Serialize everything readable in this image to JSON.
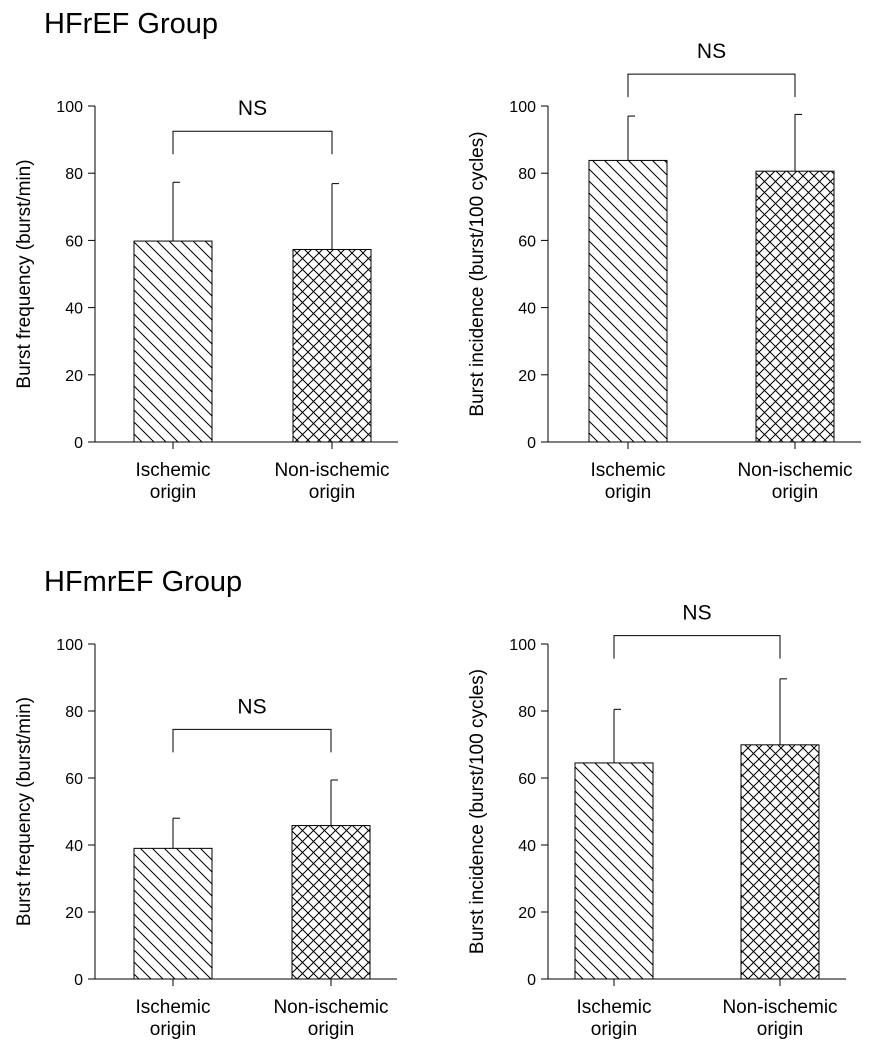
{
  "groups": [
    {
      "title": "HFrEF Group"
    },
    {
      "title": "HFmrEF Group"
    }
  ],
  "chart_data": [
    {
      "type": "bar",
      "group": "HFrEF Group",
      "categories": [
        [
          "Ischemic",
          "origin"
        ],
        [
          "Non-ischemic",
          "origin"
        ]
      ],
      "values": [
        59.8,
        57.3
      ],
      "error_upper": [
        77.3,
        76.9
      ],
      "patterns": [
        "diagonal-hatch",
        "cross-hatch"
      ],
      "ylabel": "Burst frequency (burst/min)",
      "ylim": [
        0,
        100
      ],
      "yticks": [
        0,
        20,
        40,
        60,
        80,
        100
      ],
      "annotation": {
        "text": "NS",
        "bracket_level": 92.5
      },
      "grid": false
    },
    {
      "type": "bar",
      "group": "HFrEF Group",
      "categories": [
        [
          "Ischemic",
          "origin"
        ],
        [
          "Non-ischemic",
          "origin"
        ]
      ],
      "values": [
        83.8,
        80.6
      ],
      "error_upper": [
        97.0,
        97.5
      ],
      "patterns": [
        "diagonal-hatch",
        "cross-hatch"
      ],
      "ylabel": "Burst incidence (burst/100 cycles)",
      "ylim": [
        0,
        100
      ],
      "yticks": [
        0,
        20,
        40,
        60,
        80,
        100
      ],
      "annotation": {
        "text": "NS",
        "bracket_level": 109.5
      },
      "grid": false
    },
    {
      "type": "bar",
      "group": "HFmrEF Group",
      "categories": [
        [
          "Ischemic",
          "origin"
        ],
        [
          "Non-ischemic",
          "origin"
        ]
      ],
      "values": [
        39.0,
        45.8
      ],
      "error_upper": [
        48.0,
        59.4
      ],
      "patterns": [
        "diagonal-hatch",
        "cross-hatch"
      ],
      "ylabel": "Burst frequency (burst/min)",
      "ylim": [
        0,
        100
      ],
      "yticks": [
        0,
        20,
        40,
        60,
        80,
        100
      ],
      "annotation": {
        "text": "NS",
        "bracket_level": 74.5
      },
      "grid": false
    },
    {
      "type": "bar",
      "group": "HFmrEF Group",
      "categories": [
        [
          "Ischemic",
          "origin"
        ],
        [
          "Non-ischemic",
          "origin"
        ]
      ],
      "values": [
        64.5,
        69.9
      ],
      "error_upper": [
        80.5,
        89.6
      ],
      "patterns": [
        "diagonal-hatch",
        "cross-hatch"
      ],
      "ylabel": "Burst incidence (burst/100 cycles)",
      "ylim": [
        0,
        100
      ],
      "yticks": [
        0,
        20,
        40,
        60,
        80,
        100
      ],
      "annotation": {
        "text": "NS",
        "bracket_level": 102.5
      },
      "grid": false
    }
  ]
}
